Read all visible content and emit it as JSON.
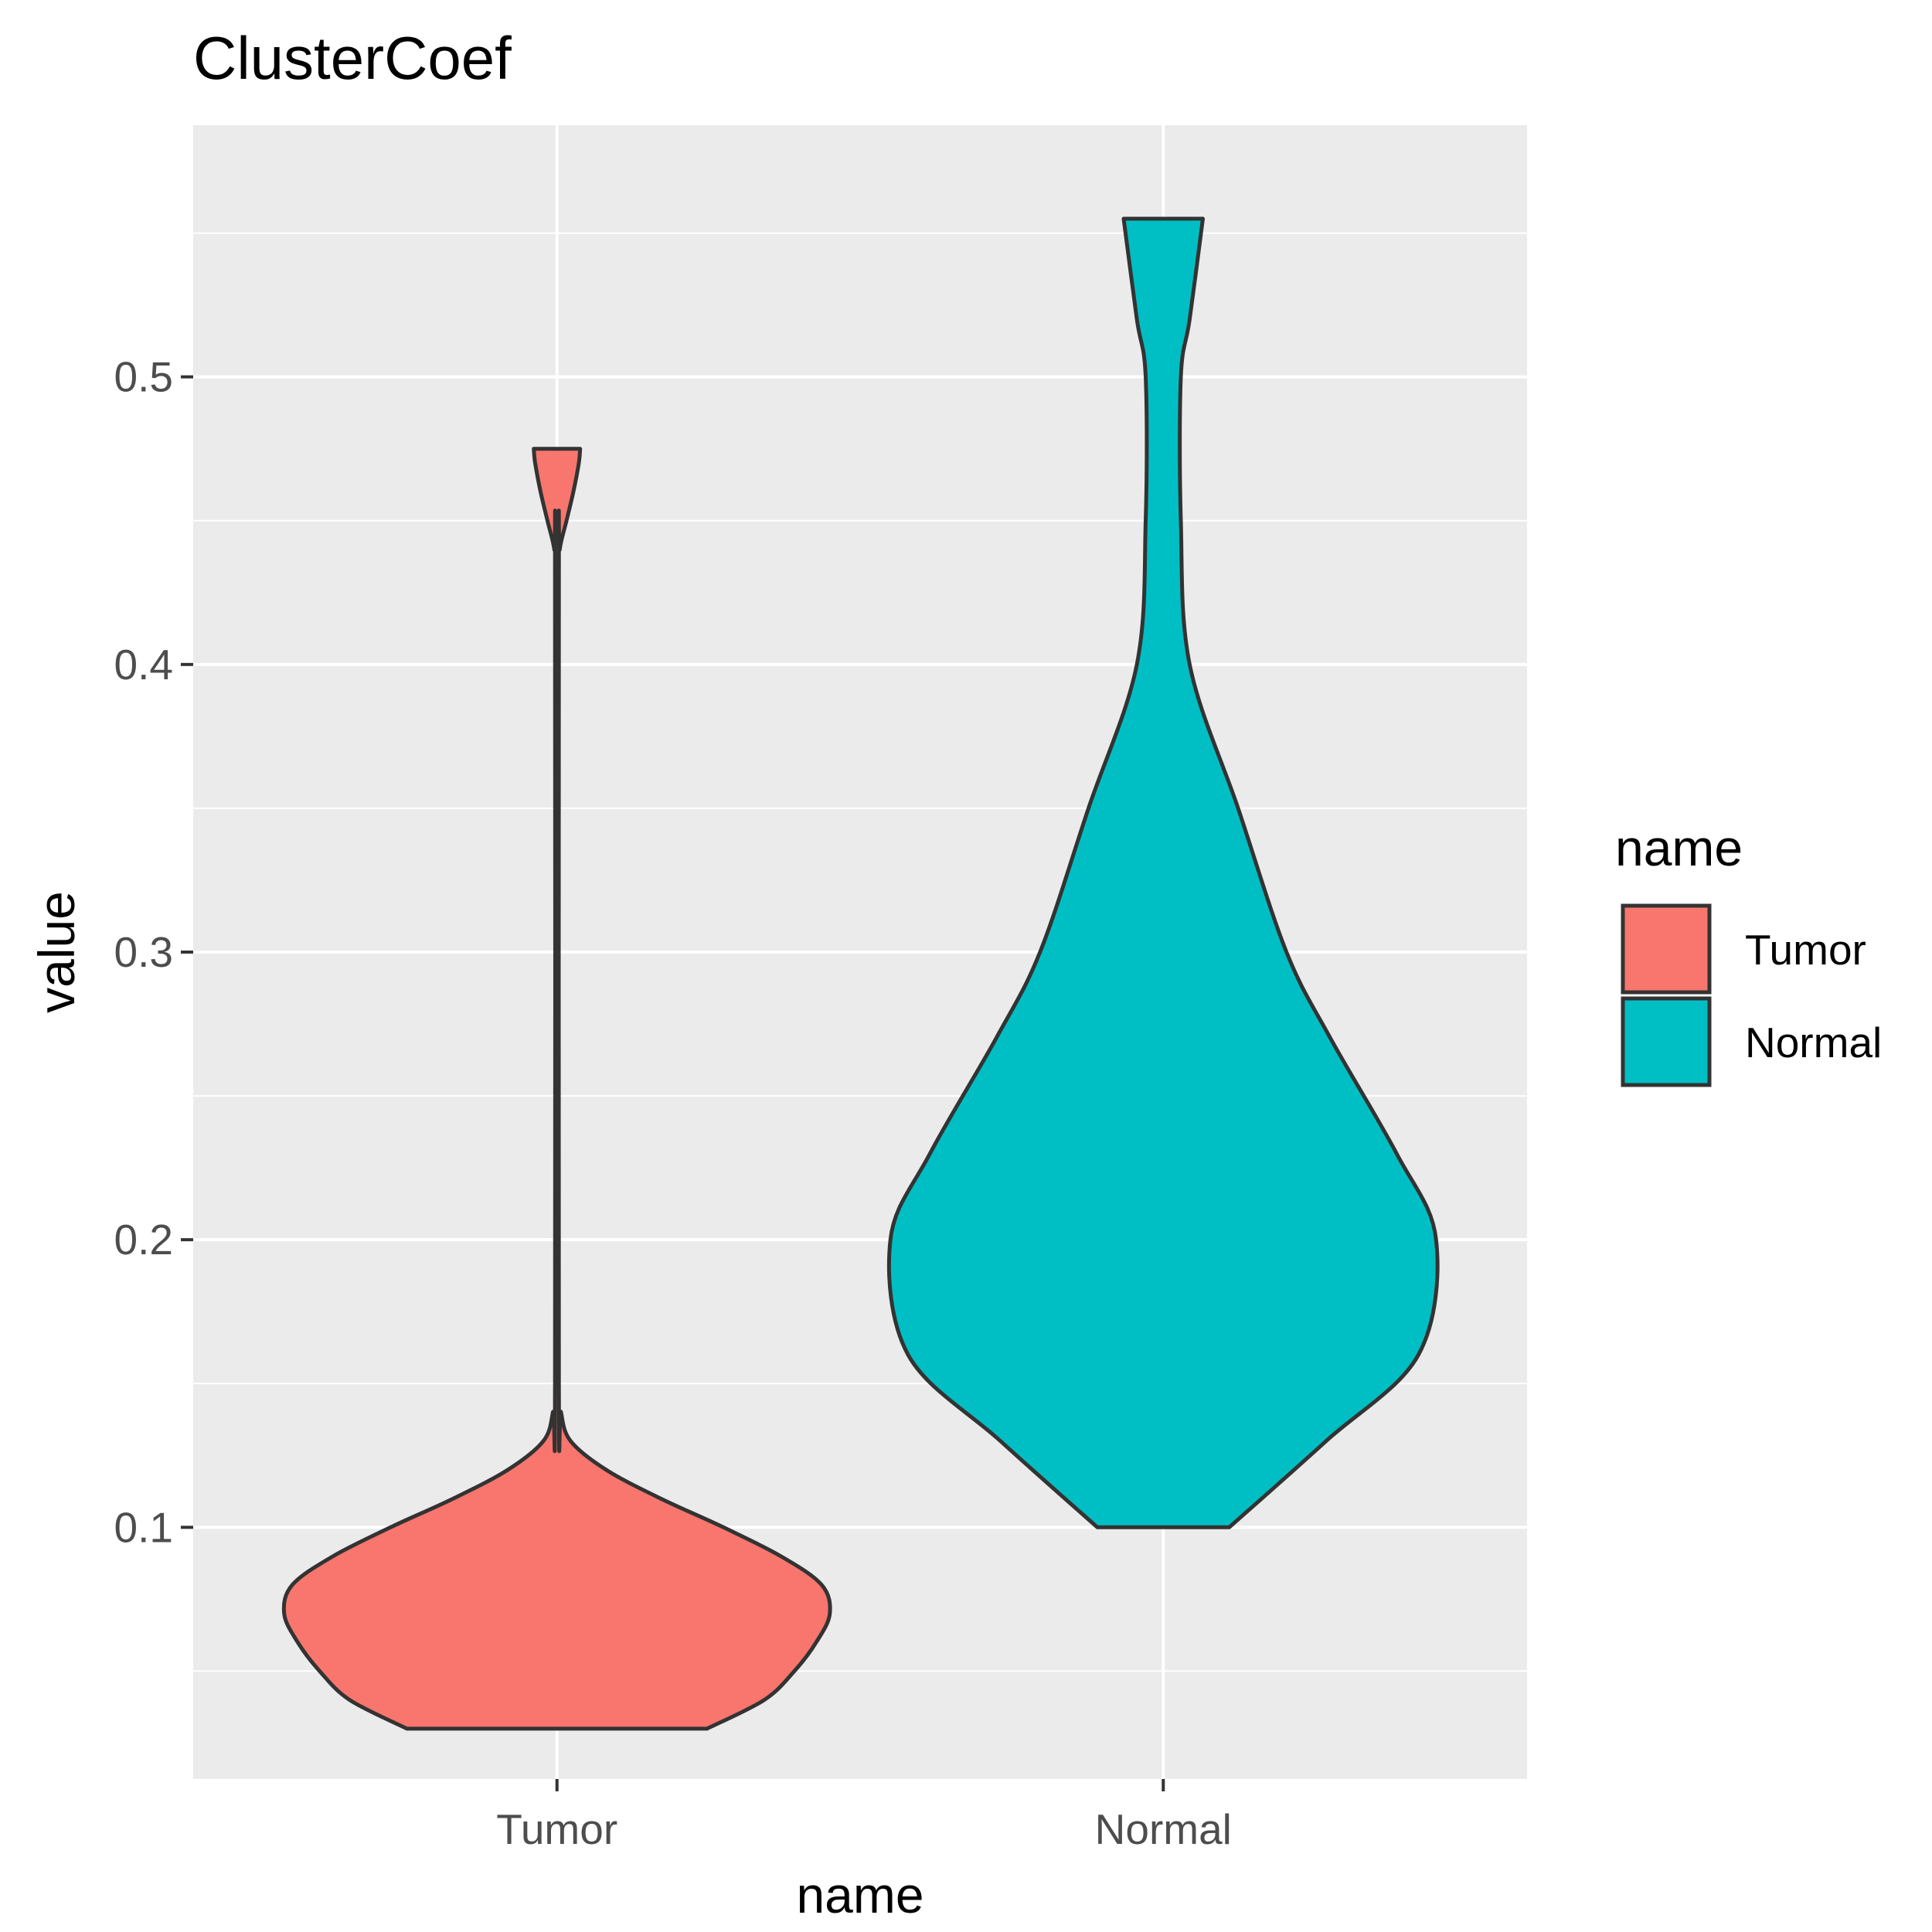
{
  "chart_data": {
    "type": "violin",
    "title": "ClusterCoef",
    "xlabel": "name",
    "ylabel": "value",
    "categories": [
      "Tumor",
      "Normal"
    ],
    "ylim": [
      0.0125,
      0.5875
    ],
    "yticks": [
      0.1,
      0.2,
      0.3,
      0.4,
      0.5
    ],
    "ytick_labels": [
      "0.1",
      "0.2",
      "0.3",
      "0.4",
      "0.5"
    ],
    "grid": true,
    "legend": {
      "title": "name",
      "position": "right",
      "entries": [
        {
          "label": "Tumor",
          "color": "#F8766D"
        },
        {
          "label": "Normal",
          "color": "#00BFC4"
        }
      ]
    },
    "series": [
      {
        "name": "Tumor",
        "color": "#F8766D",
        "min": 0.03,
        "max": 0.475,
        "density": [
          [
            0.03,
            0.55
          ],
          [
            0.04,
            0.76
          ],
          [
            0.05,
            0.87
          ],
          [
            0.06,
            0.95
          ],
          [
            0.07,
            1.0
          ],
          [
            0.08,
            0.97
          ],
          [
            0.09,
            0.82
          ],
          [
            0.1,
            0.61
          ],
          [
            0.11,
            0.38
          ],
          [
            0.12,
            0.18
          ],
          [
            0.13,
            0.05
          ],
          [
            0.14,
            0.015
          ],
          [
            0.15,
            0.0
          ],
          [
            0.43,
            0.0
          ],
          [
            0.44,
            0.01
          ],
          [
            0.45,
            0.035
          ],
          [
            0.46,
            0.06
          ],
          [
            0.47,
            0.08
          ],
          [
            0.475,
            0.085
          ]
        ]
      },
      {
        "name": "Normal",
        "color": "#00BFC4",
        "min": 0.1,
        "max": 0.555,
        "density": [
          [
            0.1,
            0.15
          ],
          [
            0.13,
            0.37
          ],
          [
            0.16,
            0.58
          ],
          [
            0.2,
            0.62
          ],
          [
            0.23,
            0.53
          ],
          [
            0.27,
            0.38
          ],
          [
            0.3,
            0.28
          ],
          [
            0.35,
            0.17
          ],
          [
            0.4,
            0.06
          ],
          [
            0.45,
            0.04
          ],
          [
            0.5,
            0.04
          ],
          [
            0.52,
            0.06
          ],
          [
            0.555,
            0.09
          ]
        ]
      }
    ]
  }
}
